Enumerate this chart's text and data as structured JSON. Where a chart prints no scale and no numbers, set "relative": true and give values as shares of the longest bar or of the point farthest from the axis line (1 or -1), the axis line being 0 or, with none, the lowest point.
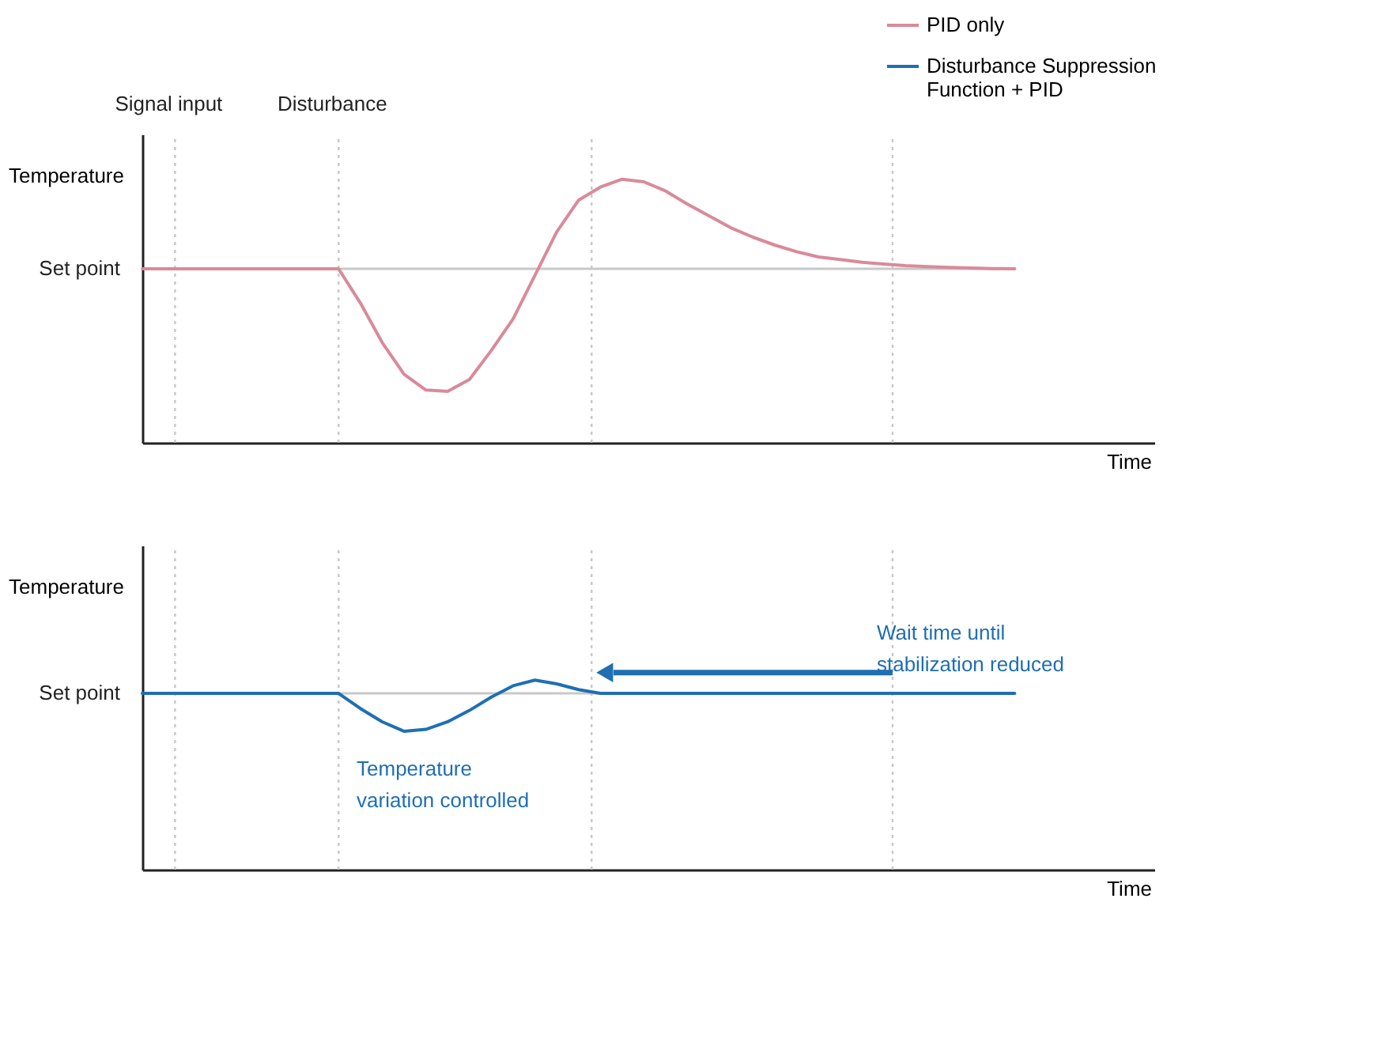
{
  "chart_data": [
    {
      "type": "line",
      "relative": true,
      "ylabel": "Temperature",
      "xlabel": "Time",
      "tick_labels": false,
      "legend": "top right",
      "line_style": "solid",
      "categories": [
        null,
        null,
        null,
        null,
        null,
        null,
        null,
        null,
        null,
        null,
        null,
        null,
        null,
        null,
        null,
        null,
        null,
        null,
        null,
        null,
        null,
        null,
        null,
        null,
        null,
        null,
        null,
        null,
        null,
        null,
        null,
        null,
        null,
        null,
        null,
        null,
        null,
        null,
        null,
        null,
        null
      ],
      "series": [
        {
          "name": "PID only",
          "color": "#d98a9a",
          "values": [
            0.66,
            0.66,
            0.66,
            0.66,
            0.66,
            0.66,
            0.66,
            0.66,
            0.66,
            0.66,
            0.53,
            0.38,
            0.26,
            0.2,
            0.195,
            0.24,
            0.35,
            0.47,
            0.635,
            0.8,
            0.92,
            0.97,
            1,
            0.99,
            0.955,
            0.905,
            0.86,
            0.815,
            0.78,
            0.75,
            0.725,
            0.705,
            0.695,
            0.685,
            0.678,
            0.672,
            0.668,
            0.665,
            0.663,
            0.661,
            0.66
          ]
        }
      ],
      "ref_lines": [
        {
          "axis": "y",
          "value": 0.66,
          "label": "Set point",
          "color": "#c8c8c8",
          "line_style": "solid"
        }
      ],
      "annotations": [
        "Signal input",
        "Disturbance"
      ]
    },
    {
      "type": "line",
      "relative": true,
      "ylabel": "Temperature",
      "xlabel": "Time",
      "tick_labels": false,
      "legend": "top right",
      "line_style": "solid",
      "categories": [
        null,
        null,
        null,
        null,
        null,
        null,
        null,
        null,
        null,
        null,
        null,
        null,
        null,
        null,
        null,
        null,
        null,
        null,
        null,
        null,
        null,
        null,
        null,
        null,
        null,
        null,
        null,
        null,
        null,
        null,
        null,
        null,
        null,
        null,
        null,
        null,
        null,
        null,
        null,
        null,
        null
      ],
      "series": [
        {
          "name": "Disturbance Suppression\nFunction + PID",
          "color": "#1f6fb2",
          "values": [
            0.93,
            0.93,
            0.93,
            0.93,
            0.93,
            0.93,
            0.93,
            0.93,
            0.93,
            0.93,
            0.85,
            0.78,
            0.73,
            0.74,
            0.78,
            0.84,
            0.91,
            0.97,
            1,
            0.98,
            0.95,
            0.93,
            0.93,
            0.93,
            0.93,
            0.93,
            0.93,
            0.93,
            0.93,
            0.93,
            0.93,
            0.93,
            0.93,
            0.93,
            0.93,
            0.93,
            0.93,
            0.93,
            0.93,
            0.93,
            0.93
          ]
        }
      ],
      "ref_lines": [
        {
          "axis": "y",
          "value": 0.93,
          "label": "Set point",
          "color": "#c8c8c8",
          "line_style": "solid"
        }
      ],
      "annotations": [
        "Temperature\nvariation controlled",
        "Wait time until\nstabilization reduced"
      ]
    }
  ]
}
